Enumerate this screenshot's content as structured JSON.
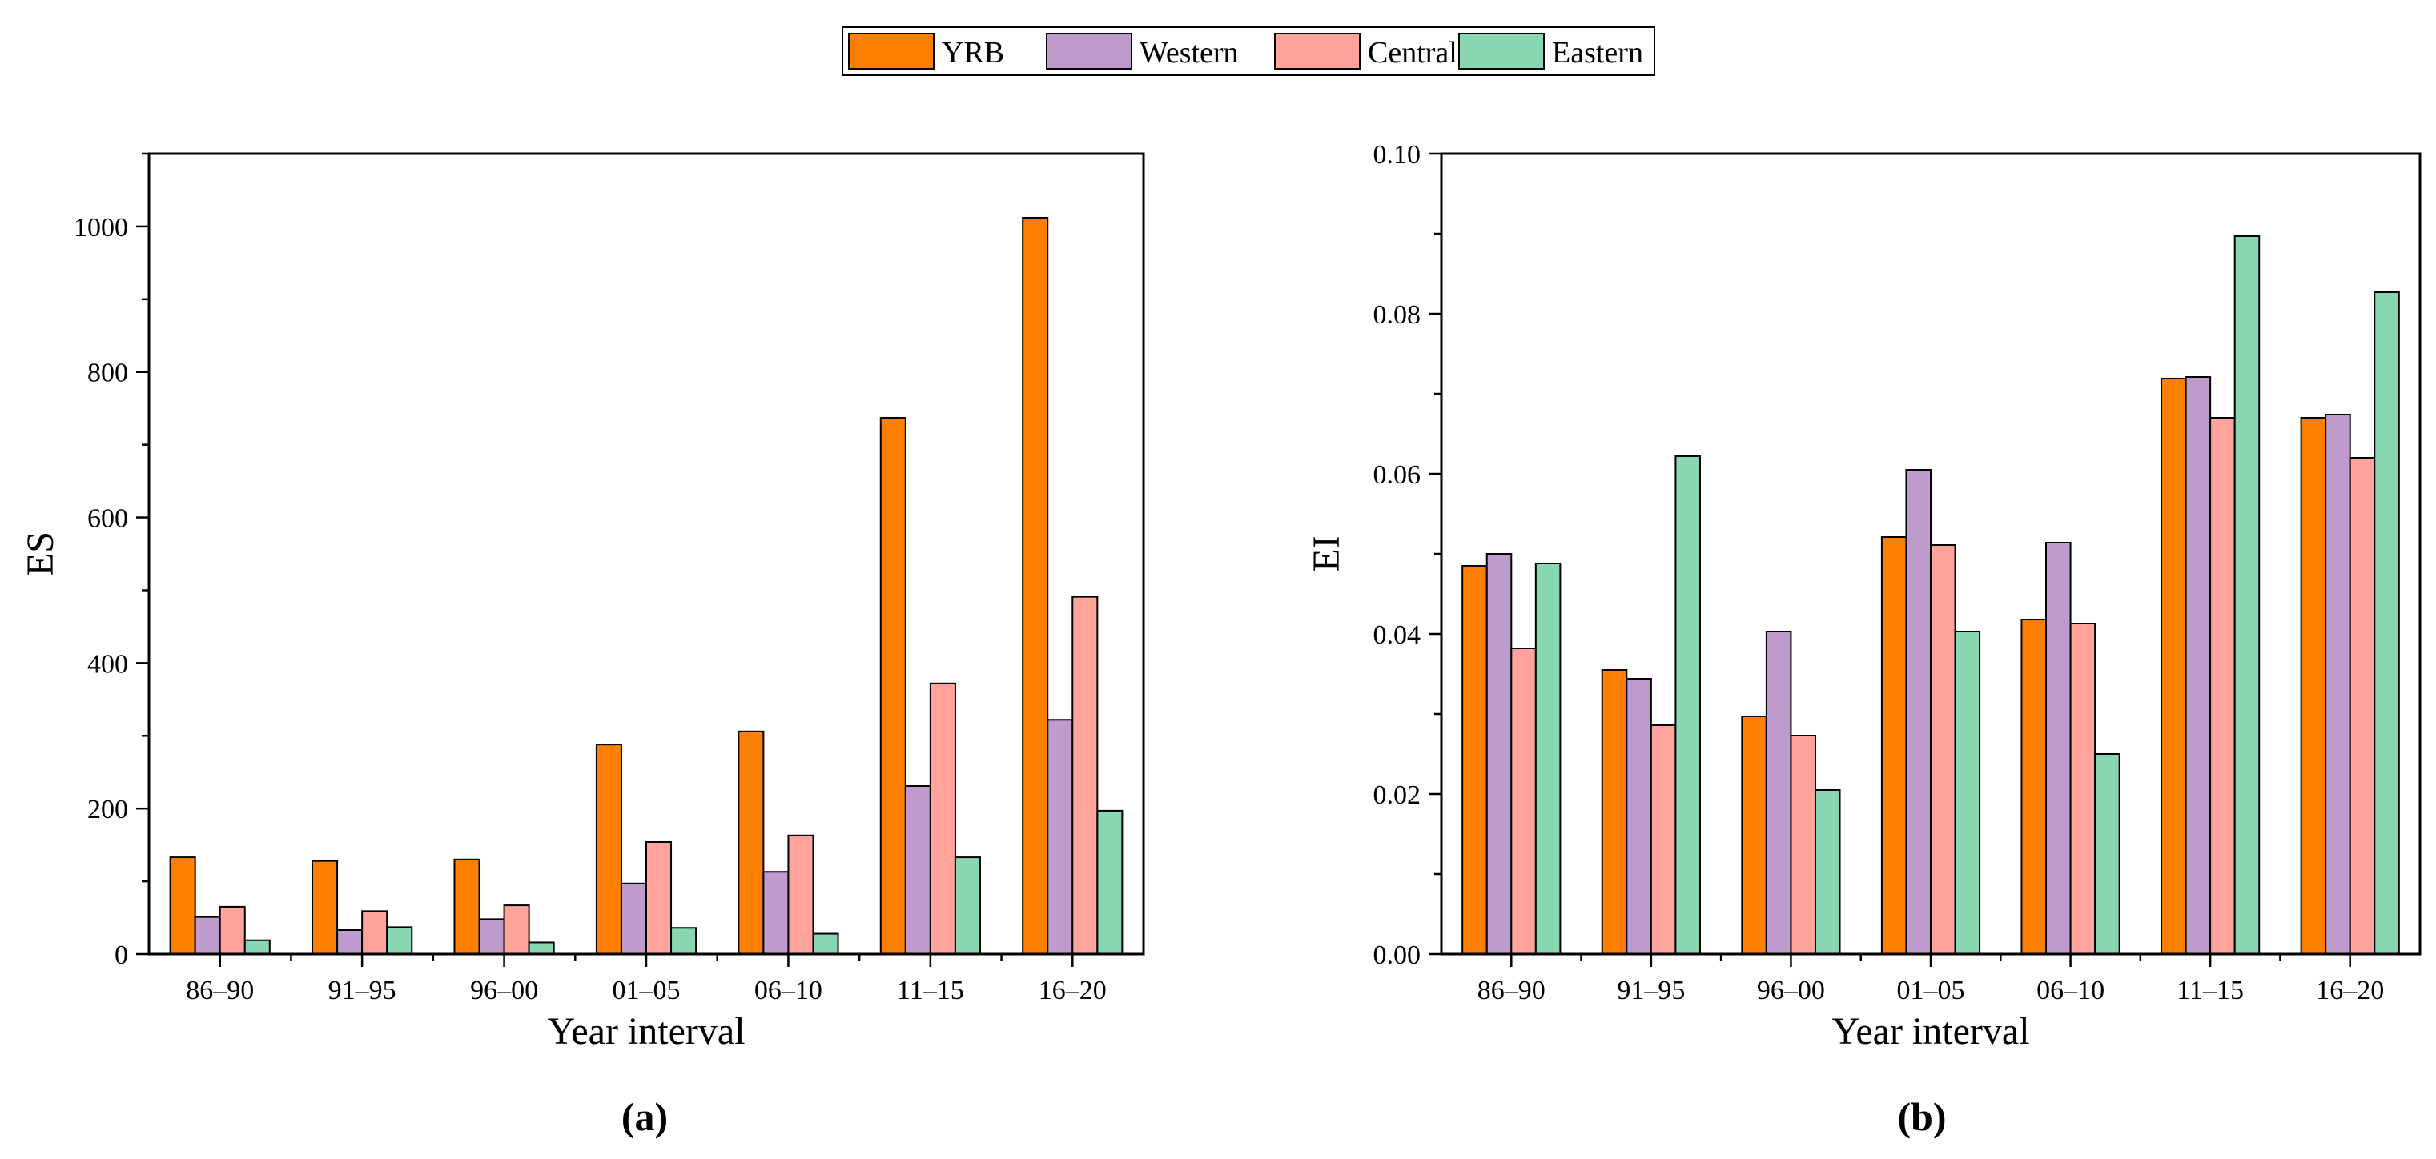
{
  "chart_data": [
    {
      "type": "bar",
      "panel_label": "(a)",
      "categories": [
        "86–90",
        "91–95",
        "96–00",
        "01–05",
        "06–10",
        "11–15",
        "16–20"
      ],
      "series": [
        {
          "name": "YRB",
          "values": [
            133,
            128,
            130,
            288,
            306,
            737,
            1012
          ]
        },
        {
          "name": "Western",
          "values": [
            51,
            33,
            48,
            97,
            113,
            231,
            322
          ]
        },
        {
          "name": "Central",
          "values": [
            65,
            59,
            67,
            154,
            163,
            372,
            491
          ]
        },
        {
          "name": "Eastern",
          "values": [
            19,
            37,
            16,
            36,
            28,
            133,
            197
          ]
        }
      ],
      "xlabel": "Year interval",
      "ylabel": "ES",
      "ylim": [
        0,
        1100
      ],
      "yticks": [
        0,
        200,
        400,
        600,
        800,
        1000
      ],
      "ytick_labels": [
        "0",
        "200",
        "400",
        "600",
        "800",
        "1000"
      ],
      "grid": false
    },
    {
      "type": "bar",
      "panel_label": "(b)",
      "categories": [
        "86–90",
        "91–95",
        "96–00",
        "01–05",
        "06–10",
        "11–15",
        "16–20"
      ],
      "series": [
        {
          "name": "YRB",
          "values": [
            0.0485,
            0.0355,
            0.0297,
            0.0521,
            0.0418,
            0.0719,
            0.067
          ]
        },
        {
          "name": "Western",
          "values": [
            0.05,
            0.0344,
            0.0403,
            0.0605,
            0.0514,
            0.0721,
            0.0674
          ]
        },
        {
          "name": "Central",
          "values": [
            0.0382,
            0.0286,
            0.0273,
            0.0511,
            0.0413,
            0.067,
            0.062
          ]
        },
        {
          "name": "Eastern",
          "values": [
            0.0488,
            0.0622,
            0.0205,
            0.0403,
            0.025,
            0.0897,
            0.0827
          ]
        }
      ],
      "xlabel": "Year interval",
      "ylabel": "EI",
      "ylim": [
        0,
        0.1
      ],
      "yticks": [
        0,
        0.02,
        0.04,
        0.06,
        0.08,
        0.1
      ],
      "ytick_labels": [
        "0.00",
        "0.02",
        "0.04",
        "0.06",
        "0.08",
        "0.10"
      ],
      "grid": false
    }
  ],
  "legend": {
    "placement": "top-center",
    "entries": [
      {
        "name": "YRB",
        "color": "#FF7F00"
      },
      {
        "name": "Western",
        "color": "#BF9BCD"
      },
      {
        "name": "Central",
        "color": "#FFA39B"
      },
      {
        "name": "Eastern",
        "color": "#88D6B2"
      }
    ]
  }
}
